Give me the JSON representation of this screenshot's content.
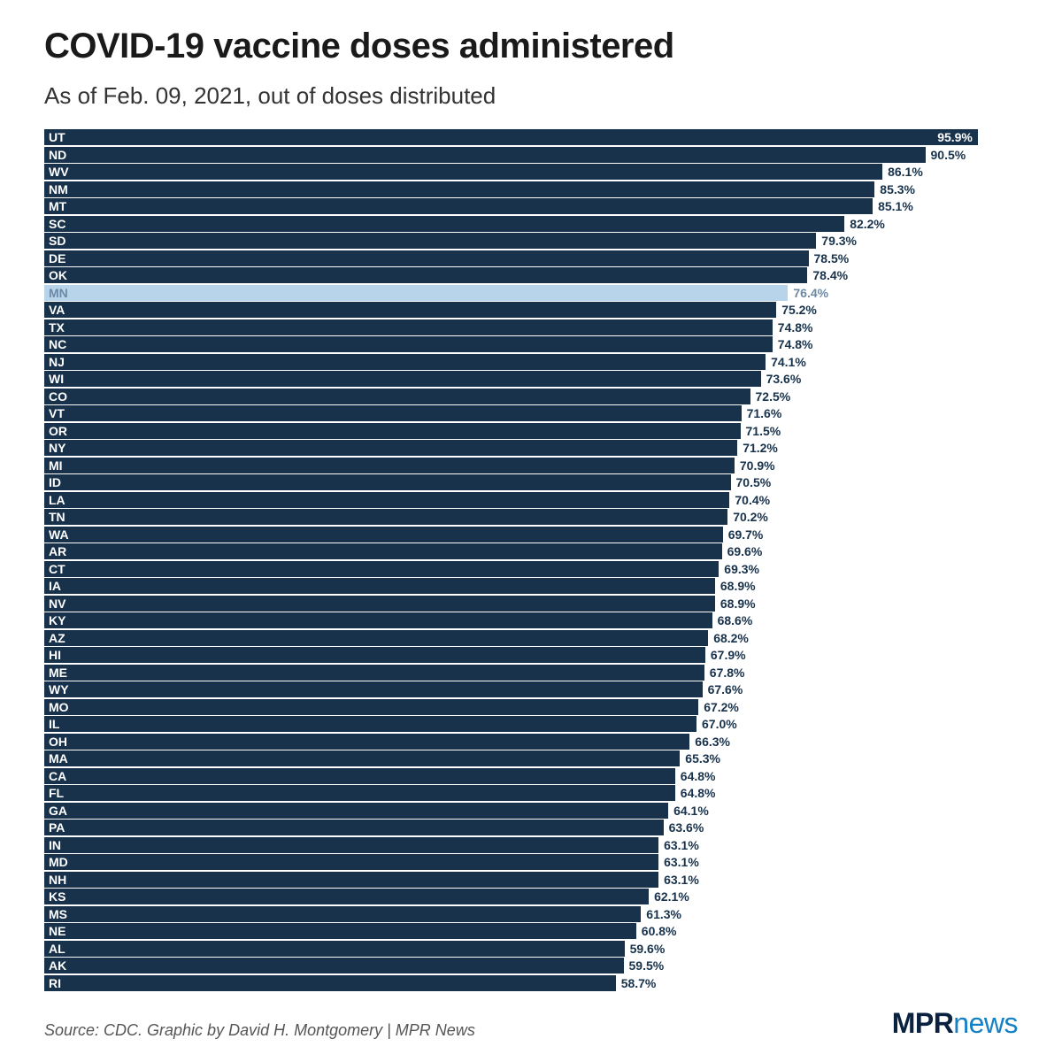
{
  "title": "COVID-19 vaccine doses administered",
  "subtitle": "As of Feb. 09, 2021, out of doses distributed",
  "source": "Source: CDC. Graphic by David H. Montgomery | MPR News",
  "logo": {
    "part1": "MPR",
    "part2": "news"
  },
  "chart": {
    "type": "bar",
    "xlim": [
      0,
      100
    ],
    "bar_color": "#18324c",
    "bar_text_color": "#ffffff",
    "highlight_color": "#b8d4ea",
    "highlight_text_color": "#6c8aa6",
    "background_color": "#ffffff",
    "title_fontsize": 40,
    "subtitle_fontsize": 26,
    "label_fontsize": 14,
    "value_suffix": "%",
    "bars": [
      {
        "state": "UT",
        "value": 95.9
      },
      {
        "state": "ND",
        "value": 90.5
      },
      {
        "state": "WV",
        "value": 86.1
      },
      {
        "state": "NM",
        "value": 85.3
      },
      {
        "state": "MT",
        "value": 85.1
      },
      {
        "state": "SC",
        "value": 82.2
      },
      {
        "state": "SD",
        "value": 79.3
      },
      {
        "state": "DE",
        "value": 78.5
      },
      {
        "state": "OK",
        "value": 78.4
      },
      {
        "state": "MN",
        "value": 76.4,
        "highlight": true
      },
      {
        "state": "VA",
        "value": 75.2
      },
      {
        "state": "TX",
        "value": 74.8
      },
      {
        "state": "NC",
        "value": 74.8
      },
      {
        "state": "NJ",
        "value": 74.1
      },
      {
        "state": "WI",
        "value": 73.6
      },
      {
        "state": "CO",
        "value": 72.5
      },
      {
        "state": "VT",
        "value": 71.6
      },
      {
        "state": "OR",
        "value": 71.5
      },
      {
        "state": "NY",
        "value": 71.2
      },
      {
        "state": "MI",
        "value": 70.9
      },
      {
        "state": "ID",
        "value": 70.5
      },
      {
        "state": "LA",
        "value": 70.4
      },
      {
        "state": "TN",
        "value": 70.2
      },
      {
        "state": "WA",
        "value": 69.7
      },
      {
        "state": "AR",
        "value": 69.6
      },
      {
        "state": "CT",
        "value": 69.3
      },
      {
        "state": "IA",
        "value": 68.9
      },
      {
        "state": "NV",
        "value": 68.9
      },
      {
        "state": "KY",
        "value": 68.6
      },
      {
        "state": "AZ",
        "value": 68.2
      },
      {
        "state": "HI",
        "value": 67.9
      },
      {
        "state": "ME",
        "value": 67.8
      },
      {
        "state": "WY",
        "value": 67.6
      },
      {
        "state": "MO",
        "value": 67.2
      },
      {
        "state": "IL",
        "value": 67.0
      },
      {
        "state": "OH",
        "value": 66.3
      },
      {
        "state": "MA",
        "value": 65.3
      },
      {
        "state": "CA",
        "value": 64.8
      },
      {
        "state": "FL",
        "value": 64.8
      },
      {
        "state": "GA",
        "value": 64.1
      },
      {
        "state": "PA",
        "value": 63.6
      },
      {
        "state": "IN",
        "value": 63.1
      },
      {
        "state": "MD",
        "value": 63.1
      },
      {
        "state": "NH",
        "value": 63.1
      },
      {
        "state": "KS",
        "value": 62.1
      },
      {
        "state": "MS",
        "value": 61.3
      },
      {
        "state": "NE",
        "value": 60.8
      },
      {
        "state": "AL",
        "value": 59.6
      },
      {
        "state": "AK",
        "value": 59.5
      },
      {
        "state": "RI",
        "value": 58.7
      }
    ]
  }
}
